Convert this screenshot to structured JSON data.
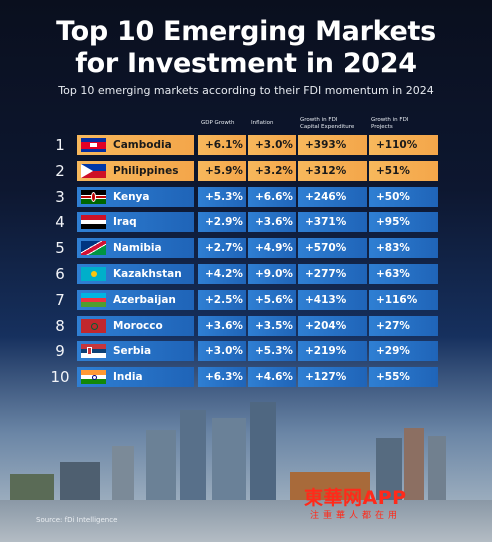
{
  "title_line1": "Top 10 Emerging Markets",
  "title_line2": "for Investment in 2024",
  "subtitle": "Top 10 emerging markets according to their FDI momentum in 2024",
  "headers": {
    "gdp": "GDP Growth",
    "inflation": "Inflation",
    "capex_line1": "Growth in FDI",
    "capex_line2": "Capital Expenditure",
    "projects_line1": "Growth in FDI",
    "projects_line2": "Projects"
  },
  "rows": [
    {
      "rank": "1",
      "country": "Cambodia",
      "gdp": "+6.1%",
      "inflation": "+3.0%",
      "capex": "+393%",
      "projects": "+110%",
      "style": "orange",
      "flag": "cambodia-flag-icon"
    },
    {
      "rank": "2",
      "country": "Philippines",
      "gdp": "+5.9%",
      "inflation": "+3.2%",
      "capex": "+312%",
      "projects": "+51%",
      "style": "orange",
      "flag": "philippines-flag-icon"
    },
    {
      "rank": "3",
      "country": "Kenya",
      "gdp": "+5.3%",
      "inflation": "+6.6%",
      "capex": "+246%",
      "projects": "+50%",
      "style": "blue",
      "flag": "kenya-flag-icon"
    },
    {
      "rank": "4",
      "country": "Iraq",
      "gdp": "+2.9%",
      "inflation": "+3.6%",
      "capex": "+371%",
      "projects": "+95%",
      "style": "blue",
      "flag": "iraq-flag-icon"
    },
    {
      "rank": "5",
      "country": "Namibia",
      "gdp": "+2.7%",
      "inflation": "+4.9%",
      "capex": "+570%",
      "projects": "+83%",
      "style": "blue",
      "flag": "namibia-flag-icon"
    },
    {
      "rank": "6",
      "country": "Kazakhstan",
      "gdp": "+4.2%",
      "inflation": "+9.0%",
      "capex": "+277%",
      "projects": "+63%",
      "style": "blue",
      "flag": "kazakhstan-flag-icon"
    },
    {
      "rank": "7",
      "country": "Azerbaijan",
      "gdp": "+2.5%",
      "inflation": "+5.6%",
      "capex": "+413%",
      "projects": "+116%",
      "style": "blue",
      "flag": "azerbaijan-flag-icon"
    },
    {
      "rank": "8",
      "country": "Morocco",
      "gdp": "+3.6%",
      "inflation": "+3.5%",
      "capex": "+204%",
      "projects": "+27%",
      "style": "blue",
      "flag": "morocco-flag-icon"
    },
    {
      "rank": "9",
      "country": "Serbia",
      "gdp": "+3.0%",
      "inflation": "+5.3%",
      "capex": "+219%",
      "projects": "+29%",
      "style": "blue",
      "flag": "serbia-flag-icon"
    },
    {
      "rank": "10",
      "country": "India",
      "gdp": "+6.3%",
      "inflation": "+4.6%",
      "capex": "+127%",
      "projects": "+55%",
      "style": "blue",
      "flag": "india-flag-icon"
    }
  ],
  "source": "Source: fDi Intelligence",
  "watermark": "東華网APP",
  "watermark_sub": "注重華人都在用",
  "colors": {
    "highlight": "#f4a64a",
    "row": "#1f64b8",
    "watermark": "#ff2a1a"
  }
}
